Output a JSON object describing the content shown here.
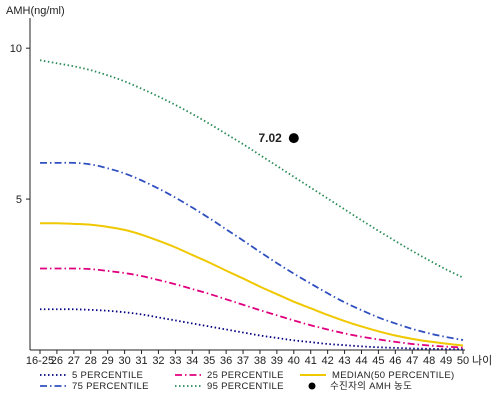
{
  "chart_data": {
    "type": "line",
    "ylabel": "AMH(ng/ml)",
    "xlabel": "나이",
    "ylim": [
      0,
      11
    ],
    "y_ticks": [
      10,
      5
    ],
    "x_tick_labels": [
      "16-25",
      "26",
      "27",
      "28",
      "29",
      "30",
      "31",
      "32",
      "33",
      "34",
      "35",
      "36",
      "37",
      "38",
      "39",
      "40",
      "41",
      "42",
      "43",
      "44",
      "45",
      "46",
      "47",
      "48",
      "49",
      "50"
    ],
    "series": [
      {
        "name": "5 PERCENTILE",
        "color": "#000080",
        "dash": "dot",
        "values": [
          1.35,
          1.35,
          1.35,
          1.33,
          1.3,
          1.25,
          1.18,
          1.08,
          0.98,
          0.88,
          0.78,
          0.68,
          0.58,
          0.48,
          0.4,
          0.32,
          0.26,
          0.2,
          0.16,
          0.12,
          0.09,
          0.07,
          0.05,
          0.04,
          0.03,
          0.03
        ]
      },
      {
        "name": "25 PERCENTILE",
        "color": "#e0007f",
        "dash": "dashdot",
        "values": [
          2.7,
          2.7,
          2.7,
          2.68,
          2.62,
          2.55,
          2.45,
          2.32,
          2.18,
          2.02,
          1.86,
          1.68,
          1.5,
          1.32,
          1.15,
          0.98,
          0.82,
          0.68,
          0.55,
          0.44,
          0.35,
          0.27,
          0.2,
          0.15,
          0.11,
          0.08
        ]
      },
      {
        "name": "MEDIAN(50 PERCENTILE)",
        "color": "#f0c800",
        "dash": "solid",
        "values": [
          4.2,
          4.2,
          4.18,
          4.15,
          4.08,
          3.98,
          3.82,
          3.62,
          3.4,
          3.15,
          2.9,
          2.63,
          2.37,
          2.1,
          1.85,
          1.6,
          1.38,
          1.16,
          0.96,
          0.78,
          0.62,
          0.48,
          0.37,
          0.28,
          0.21,
          0.15
        ]
      },
      {
        "name": "75 PERCENTILE",
        "color": "#3050c0",
        "dash": "dashdot",
        "values": [
          6.2,
          6.2,
          6.2,
          6.15,
          6.02,
          5.85,
          5.62,
          5.35,
          5.05,
          4.72,
          4.37,
          4.0,
          3.63,
          3.25,
          2.88,
          2.53,
          2.2,
          1.88,
          1.58,
          1.32,
          1.08,
          0.88,
          0.7,
          0.55,
          0.43,
          0.33
        ]
      },
      {
        "name": "95 PERCENTILE",
        "color": "#2a8a55",
        "dash": "dot",
        "values": [
          9.6,
          9.5,
          9.4,
          9.27,
          9.1,
          8.9,
          8.66,
          8.4,
          8.12,
          7.82,
          7.5,
          7.16,
          6.82,
          6.46,
          6.1,
          5.74,
          5.38,
          5.02,
          4.66,
          4.3,
          3.95,
          3.61,
          3.28,
          2.97,
          2.67,
          2.4
        ]
      }
    ],
    "patient": {
      "label": "수진자의 AMH 농도",
      "value_label": "7.02",
      "x_index": 15,
      "value": 7.02,
      "color": "#000000"
    },
    "legend_order": [
      "5 PERCENTILE",
      "25 PERCENTILE",
      "MEDIAN(50 PERCENTILE)",
      "75 PERCENTILE",
      "95 PERCENTILE",
      "수진자의 AMH 농도"
    ]
  }
}
